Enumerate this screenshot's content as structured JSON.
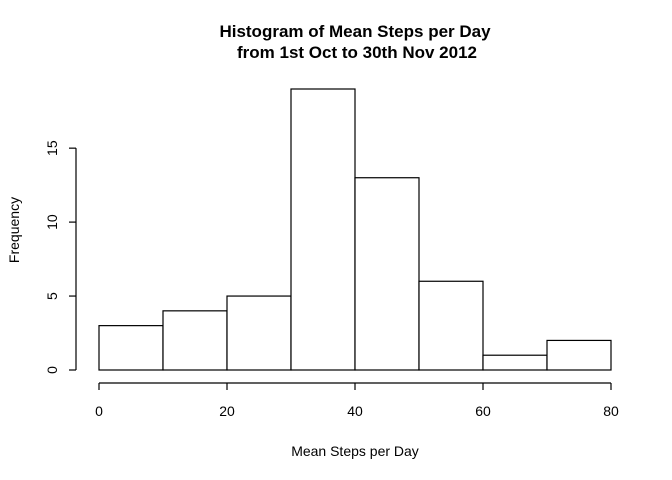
{
  "chart_data": {
    "type": "bar",
    "title_line1": "Histogram of Mean Steps per Day",
    "title_line2": "from 1st Oct to 30th Nov 2012",
    "xlabel": "Mean Steps per Day",
    "ylabel": "Frequency",
    "bins": [
      {
        "from": 0,
        "to": 10,
        "count": 3
      },
      {
        "from": 10,
        "to": 20,
        "count": 4
      },
      {
        "from": 20,
        "to": 30,
        "count": 5
      },
      {
        "from": 30,
        "to": 40,
        "count": 19
      },
      {
        "from": 40,
        "to": 50,
        "count": 13
      },
      {
        "from": 50,
        "to": 60,
        "count": 6
      },
      {
        "from": 60,
        "to": 70,
        "count": 1
      },
      {
        "from": 70,
        "to": 80,
        "count": 2
      }
    ],
    "xlim": [
      0,
      80
    ],
    "ylim": [
      0,
      19
    ],
    "xticks": [
      0,
      20,
      40,
      60,
      80
    ],
    "yticks": [
      0,
      5,
      10,
      15
    ],
    "grid": false,
    "bar_fill": "#ffffff",
    "bar_stroke": "#000000"
  }
}
